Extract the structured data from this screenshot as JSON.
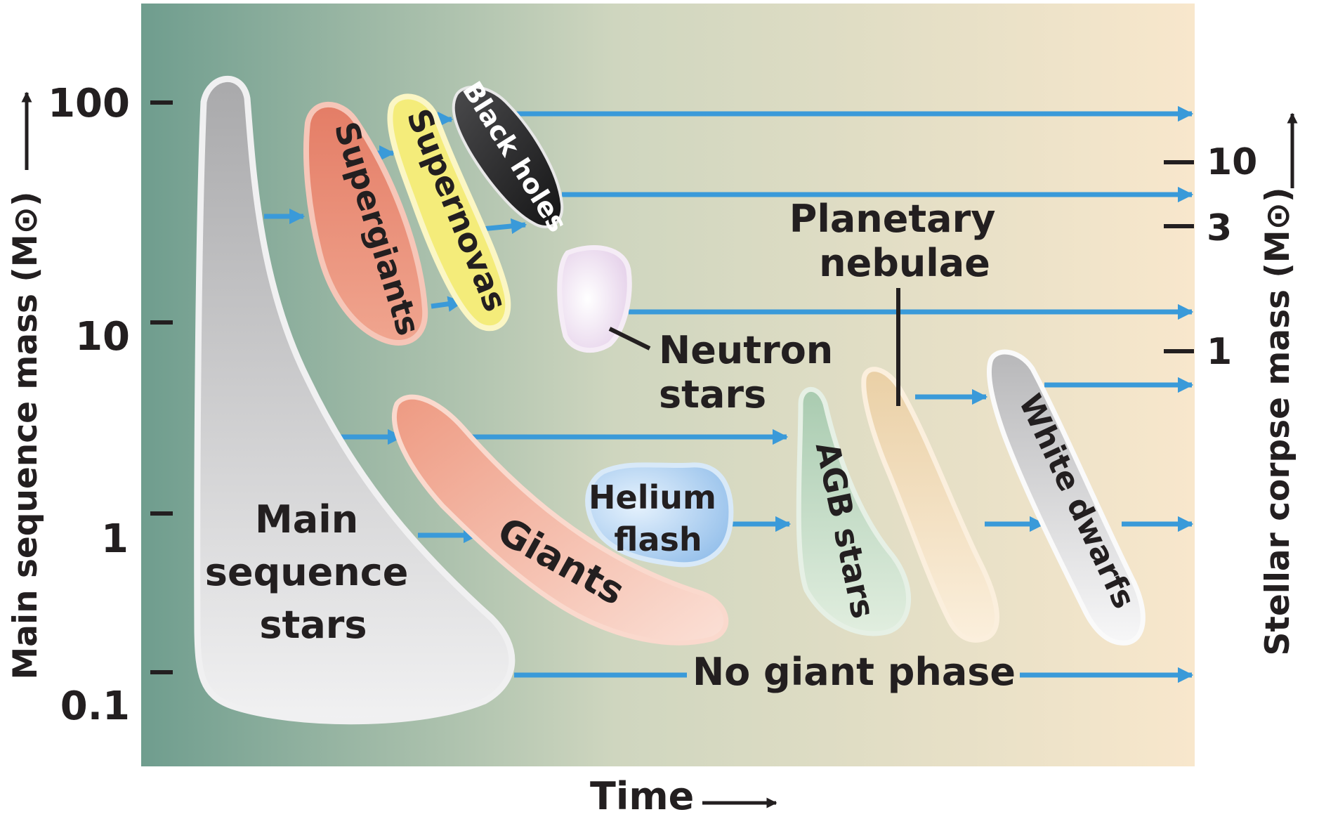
{
  "colors": {
    "bg_left": "#6f9d8e",
    "bg_right": "#f8e7cc",
    "arrow": "#3a9ad9",
    "ink": "#231f20",
    "main_sequence": "#cfcfd1",
    "supergiants": "#e88b73",
    "supernovas": "#f4ec7a",
    "black_holes": "#2c2c2e",
    "neutron_stars": "#ecdcef",
    "giants": "#f1ab93",
    "helium_flash": "#a9cdf0",
    "agb": "#c3dcc4",
    "planetary_nebulae": "#f1d9b2",
    "white_dwarfs": "#d4d4d6"
  },
  "axes": {
    "left_label": "Main sequence mass (M⊙)",
    "left_ticks": [
      "100",
      "10",
      "1",
      "0.1"
    ],
    "right_label": "Stellar corpse mass (M⊙)",
    "right_ticks": [
      "10",
      "3",
      "1"
    ],
    "bottom_label": "Time"
  },
  "labels": {
    "main_sequence": [
      "Main",
      "sequence",
      "stars"
    ],
    "supergiants": "Supergiants",
    "supernovas": "Supernovas",
    "black_holes": "Black holes",
    "neutron_stars": [
      "Neutron",
      "stars"
    ],
    "planetary_nebulae": [
      "Planetary",
      "nebulae"
    ],
    "giants": "Giants",
    "helium_flash": [
      "Helium",
      "flash"
    ],
    "agb": "AGB stars",
    "white_dwarfs": "White dwarfs",
    "no_giant": "No giant phase"
  }
}
